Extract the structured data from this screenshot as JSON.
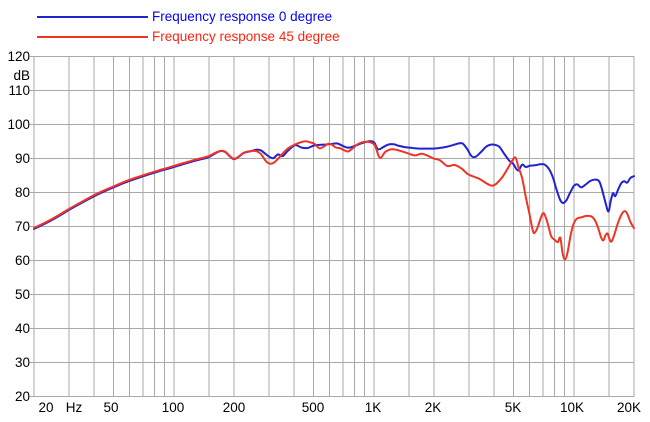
{
  "chart_data": {
    "type": "line",
    "title": "",
    "colors": {
      "grid": "#a9a9a9",
      "text": "#000000",
      "background": "#ffffff"
    },
    "x_axis": {
      "unit": "Hz",
      "scale": "log",
      "min": 20,
      "max": 20000,
      "grid_freqs": [
        20,
        30,
        40,
        50,
        60,
        70,
        80,
        90,
        100,
        150,
        200,
        300,
        400,
        500,
        600,
        700,
        800,
        900,
        1000,
        1500,
        2000,
        3000,
        4000,
        5000,
        6000,
        7000,
        8000,
        9000,
        10000,
        15000,
        20000
      ],
      "tick_labels": [
        {
          "text": "20",
          "x": 46
        },
        {
          "text": "Hz",
          "x": 74
        },
        {
          "text": "50",
          "x": 111
        },
        {
          "text": "100",
          "x": 173
        },
        {
          "text": "200",
          "x": 234
        },
        {
          "text": "500",
          "x": 313
        },
        {
          "text": "1K",
          "x": 373
        },
        {
          "text": "2K",
          "x": 433
        },
        {
          "text": "5K",
          "x": 513
        },
        {
          "text": "10K",
          "x": 572
        },
        {
          "text": "20K",
          "x": 629
        }
      ]
    },
    "y_axis": {
      "unit": "dB",
      "min": 20,
      "max": 120,
      "ticks": [
        120,
        110,
        100,
        90,
        80,
        70,
        60,
        50,
        40,
        30,
        20
      ]
    },
    "legend_position": "top-left",
    "series": [
      {
        "name": "Frequency response 0 degree",
        "color": "#2222d0",
        "label_color": "#0404f0",
        "points": [
          [
            20,
            69.3
          ],
          [
            23,
            71.0
          ],
          [
            26,
            72.7
          ],
          [
            30,
            74.9
          ],
          [
            34,
            76.7
          ],
          [
            39,
            78.6
          ],
          [
            44,
            80.1
          ],
          [
            50,
            81.5
          ],
          [
            57,
            82.9
          ],
          [
            65,
            84.1
          ],
          [
            74,
            85.2
          ],
          [
            84,
            86.2
          ],
          [
            95,
            87.1
          ],
          [
            108,
            88.1
          ],
          [
            122,
            89.0
          ],
          [
            135,
            89.7
          ],
          [
            148,
            90.3
          ],
          [
            158,
            91.2
          ],
          [
            166,
            91.9
          ],
          [
            173,
            92.2
          ],
          [
            181,
            91.9
          ],
          [
            190,
            90.7
          ],
          [
            200,
            89.8
          ],
          [
            211,
            90.5
          ],
          [
            222,
            91.5
          ],
          [
            232,
            91.9
          ],
          [
            245,
            92.2
          ],
          [
            258,
            92.6
          ],
          [
            272,
            92.4
          ],
          [
            288,
            91.3
          ],
          [
            302,
            90.4
          ],
          [
            315,
            90.1
          ],
          [
            332,
            91.2
          ],
          [
            350,
            90.7
          ],
          [
            372,
            92.3
          ],
          [
            404,
            93.9
          ],
          [
            436,
            93.2
          ],
          [
            468,
            93.1
          ],
          [
            500,
            93.8
          ],
          [
            535,
            94.0
          ],
          [
            575,
            94.1
          ],
          [
            620,
            94.3
          ],
          [
            658,
            94.4
          ],
          [
            700,
            93.7
          ],
          [
            738,
            93.2
          ],
          [
            780,
            93.4
          ],
          [
            826,
            94.0
          ],
          [
            872,
            94.5
          ],
          [
            920,
            94.9
          ],
          [
            962,
            95.1
          ],
          [
            1005,
            94.7
          ],
          [
            1050,
            92.7
          ],
          [
            1110,
            93.3
          ],
          [
            1180,
            94.1
          ],
          [
            1255,
            94.2
          ],
          [
            1340,
            93.7
          ],
          [
            1440,
            93.3
          ],
          [
            1560,
            93.1
          ],
          [
            1690,
            92.9
          ],
          [
            1830,
            92.9
          ],
          [
            1980,
            92.9
          ],
          [
            2130,
            93.1
          ],
          [
            2300,
            93.4
          ],
          [
            2480,
            93.9
          ],
          [
            2650,
            94.4
          ],
          [
            2780,
            94.4
          ],
          [
            2920,
            92.9
          ],
          [
            3080,
            90.7
          ],
          [
            3220,
            90.5
          ],
          [
            3420,
            91.8
          ],
          [
            3650,
            93.5
          ],
          [
            3850,
            94.1
          ],
          [
            4050,
            94.0
          ],
          [
            4250,
            93.4
          ],
          [
            4500,
            91.3
          ],
          [
            4750,
            89.4
          ],
          [
            4980,
            88.4
          ],
          [
            5150,
            87.0
          ],
          [
            5300,
            86.5
          ],
          [
            5520,
            88.2
          ],
          [
            5750,
            87.5
          ],
          [
            6050,
            87.9
          ],
          [
            6400,
            88.0
          ],
          [
            6800,
            88.3
          ],
          [
            7150,
            88.2
          ],
          [
            7500,
            87.0
          ],
          [
            7850,
            84.5
          ],
          [
            8200,
            80.8
          ],
          [
            8550,
            77.8
          ],
          [
            8850,
            76.9
          ],
          [
            9200,
            77.8
          ],
          [
            9600,
            80.0
          ],
          [
            10000,
            81.9
          ],
          [
            10400,
            82.4
          ],
          [
            10900,
            81.5
          ],
          [
            11500,
            82.4
          ],
          [
            12100,
            83.4
          ],
          [
            12800,
            83.8
          ],
          [
            13400,
            83.3
          ],
          [
            13900,
            80.5
          ],
          [
            14400,
            77.0
          ],
          [
            14900,
            74.4
          ],
          [
            15300,
            77.5
          ],
          [
            15700,
            79.8
          ],
          [
            16100,
            78.9
          ],
          [
            16700,
            81.0
          ],
          [
            17300,
            82.8
          ],
          [
            17900,
            83.3
          ],
          [
            18500,
            82.9
          ],
          [
            19200,
            84.3
          ],
          [
            20000,
            84.8
          ]
        ]
      },
      {
        "name": "Frequency response 45 degree",
        "color": "#ee3424",
        "label_color": "#ff2413",
        "points": [
          [
            20,
            69.6
          ],
          [
            23,
            71.3
          ],
          [
            26,
            73.0
          ],
          [
            30,
            75.2
          ],
          [
            34,
            77.0
          ],
          [
            39,
            78.9
          ],
          [
            44,
            80.4
          ],
          [
            50,
            81.8
          ],
          [
            57,
            83.2
          ],
          [
            65,
            84.4
          ],
          [
            74,
            85.5
          ],
          [
            84,
            86.5
          ],
          [
            95,
            87.4
          ],
          [
            108,
            88.4
          ],
          [
            122,
            89.3
          ],
          [
            135,
            90.0
          ],
          [
            148,
            90.6
          ],
          [
            158,
            91.4
          ],
          [
            166,
            92.0
          ],
          [
            173,
            92.3
          ],
          [
            181,
            92.0
          ],
          [
            190,
            90.8
          ],
          [
            200,
            89.9
          ],
          [
            211,
            90.6
          ],
          [
            222,
            91.6
          ],
          [
            232,
            92.0
          ],
          [
            245,
            92.2
          ],
          [
            258,
            92.2
          ],
          [
            272,
            91.4
          ],
          [
            288,
            89.3
          ],
          [
            302,
            88.5
          ],
          [
            315,
            88.7
          ],
          [
            332,
            89.9
          ],
          [
            352,
            91.6
          ],
          [
            375,
            93.1
          ],
          [
            400,
            94.0
          ],
          [
            428,
            94.7
          ],
          [
            455,
            95.1
          ],
          [
            478,
            94.8
          ],
          [
            505,
            94.3
          ],
          [
            535,
            93.0
          ],
          [
            565,
            93.6
          ],
          [
            590,
            94.3
          ],
          [
            615,
            94.1
          ],
          [
            648,
            93.2
          ],
          [
            680,
            93.0
          ],
          [
            712,
            92.4
          ],
          [
            745,
            92.1
          ],
          [
            788,
            93.1
          ],
          [
            830,
            94.2
          ],
          [
            878,
            94.8
          ],
          [
            930,
            94.9
          ],
          [
            975,
            94.6
          ],
          [
            1015,
            93.8
          ],
          [
            1055,
            90.9
          ],
          [
            1085,
            90.2
          ],
          [
            1140,
            91.9
          ],
          [
            1220,
            92.7
          ],
          [
            1310,
            92.5
          ],
          [
            1400,
            92.0
          ],
          [
            1500,
            91.4
          ],
          [
            1610,
            90.9
          ],
          [
            1730,
            91.4
          ],
          [
            1850,
            90.9
          ],
          [
            1990,
            90.0
          ],
          [
            2140,
            89.5
          ],
          [
            2330,
            87.8
          ],
          [
            2530,
            88.1
          ],
          [
            2740,
            87.1
          ],
          [
            2950,
            85.4
          ],
          [
            3150,
            84.7
          ],
          [
            3400,
            83.9
          ],
          [
            3650,
            82.7
          ],
          [
            3900,
            82.0
          ],
          [
            4120,
            82.7
          ],
          [
            4400,
            84.6
          ],
          [
            4700,
            87.3
          ],
          [
            4950,
            89.6
          ],
          [
            5120,
            90.2
          ],
          [
            5300,
            87.3
          ],
          [
            5520,
            84.2
          ],
          [
            5750,
            78.8
          ],
          [
            6000,
            73.8
          ],
          [
            6250,
            68.6
          ],
          [
            6400,
            68.3
          ],
          [
            6600,
            69.8
          ],
          [
            6850,
            72.6
          ],
          [
            7080,
            73.9
          ],
          [
            7400,
            71.0
          ],
          [
            7700,
            67.2
          ],
          [
            8050,
            66.0
          ],
          [
            8330,
            65.4
          ],
          [
            8560,
            66.7
          ],
          [
            8800,
            62.0
          ],
          [
            9050,
            60.3
          ],
          [
            9300,
            62.3
          ],
          [
            9650,
            67.5
          ],
          [
            9950,
            70.6
          ],
          [
            10350,
            72.3
          ],
          [
            10900,
            72.7
          ],
          [
            11500,
            73.1
          ],
          [
            12200,
            73.0
          ],
          [
            12700,
            72.0
          ],
          [
            13200,
            69.8
          ],
          [
            13700,
            66.8
          ],
          [
            14050,
            65.9
          ],
          [
            14400,
            67.4
          ],
          [
            14750,
            67.9
          ],
          [
            15100,
            66.2
          ],
          [
            15450,
            65.6
          ],
          [
            15950,
            67.6
          ],
          [
            16600,
            70.9
          ],
          [
            17300,
            73.5
          ],
          [
            17900,
            74.5
          ],
          [
            18500,
            73.8
          ],
          [
            19200,
            71.3
          ],
          [
            20000,
            69.5
          ]
        ]
      }
    ]
  }
}
